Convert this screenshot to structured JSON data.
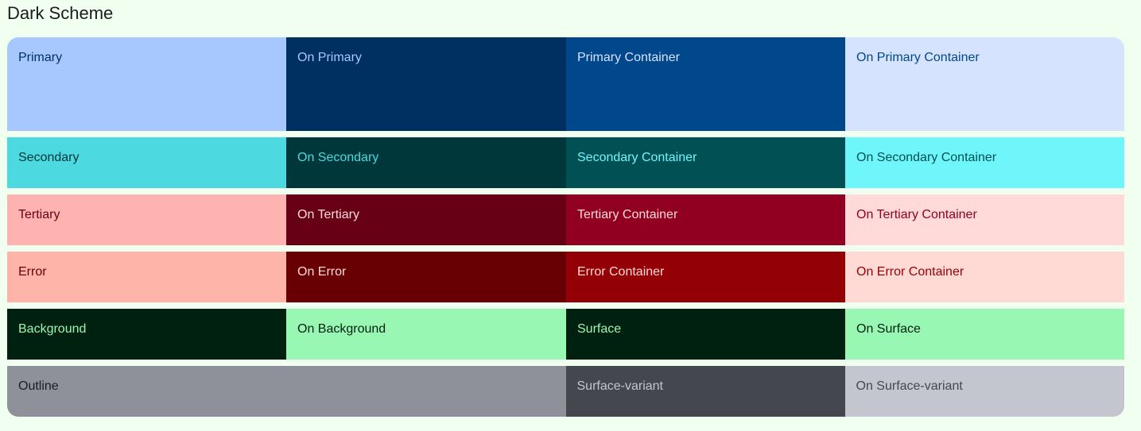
{
  "page": {
    "title": "Dark Scheme",
    "background": "#f0fff0"
  },
  "rows": [
    {
      "cells": [
        {
          "label": "Primary",
          "bg": "#a6c8ff",
          "fg": "#00315f"
        },
        {
          "label": "On Primary",
          "bg": "#003062",
          "fg": "#a6c8ff"
        },
        {
          "label": "Primary Container",
          "bg": "#00478b",
          "fg": "#d6e3ff"
        },
        {
          "label": "On Primary Container",
          "bg": "#d6e3ff",
          "fg": "#00478b"
        }
      ]
    },
    {
      "cells": [
        {
          "label": "Secondary",
          "bg": "#4cd9df",
          "fg": "#00373a"
        },
        {
          "label": "On Secondary",
          "bg": "#00373a",
          "fg": "#4cd9df"
        },
        {
          "label": "Secondary Container",
          "bg": "#005054",
          "fg": "#6ff6fb"
        },
        {
          "label": "On Secondary Container",
          "bg": "#6ff6fb",
          "fg": "#005054"
        }
      ]
    },
    {
      "cells": [
        {
          "label": "Tertiary",
          "bg": "#ffb3b1",
          "fg": "#680015"
        },
        {
          "label": "On Tertiary",
          "bg": "#680015",
          "fg": "#ffdad8"
        },
        {
          "label": "Tertiary Container",
          "bg": "#920021",
          "fg": "#ffdad8"
        },
        {
          "label": "On Tertiary Container",
          "bg": "#ffdad8",
          "fg": "#920021"
        }
      ]
    },
    {
      "cells": [
        {
          "label": "Error",
          "bg": "#ffb4a9",
          "fg": "#680003"
        },
        {
          "label": "On Error",
          "bg": "#680003",
          "fg": "#ffdad4"
        },
        {
          "label": "Error Container",
          "bg": "#930006",
          "fg": "#ffdad4"
        },
        {
          "label": "On Error Container",
          "bg": "#ffdad4",
          "fg": "#930006"
        }
      ]
    },
    {
      "cells": [
        {
          "label": "Background",
          "bg": "#002110",
          "fg": "#99f7b4"
        },
        {
          "label": "On Background",
          "bg": "#99f7b4",
          "fg": "#002110"
        },
        {
          "label": "Surface",
          "bg": "#002110",
          "fg": "#99f7b4"
        },
        {
          "label": "On Surface",
          "bg": "#99f7b4",
          "fg": "#002110"
        }
      ]
    },
    {
      "cells": [
        {
          "label": "Outline",
          "bg": "#8e9199",
          "fg": "#1a1c1e",
          "wide": true
        },
        {
          "label": "Surface-variant",
          "bg": "#44474e",
          "fg": "#c4c6cf"
        },
        {
          "label": "On Surface-variant",
          "bg": "#c4c6cf",
          "fg": "#44474e"
        }
      ]
    }
  ]
}
